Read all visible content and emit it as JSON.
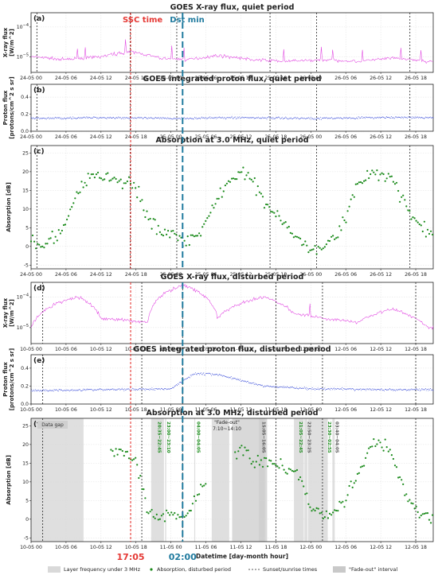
{
  "figure": {
    "ssc_label": "SSC time",
    "dst_label": "Dst min",
    "ssc_time": "17:05",
    "dst_time": "02:00",
    "xlabel": "Datetime [day-month hour]",
    "colors": {
      "xray": "#e040e0",
      "proton": "#2a3fd6",
      "absorption": "#1a8a1a",
      "ssc": "#e53935",
      "dst": "#1f7a9e",
      "shade": "#d9d9d9"
    },
    "ssc_hour": 17.083,
    "dst_hour": 26.0
  },
  "panels": [
    {
      "letter": "(a)",
      "title": "GOES X-ray flux, quiet period",
      "ylabel": "X-ray flux\n[W/m^2]",
      "yticks": [
        "10^-4",
        "10^-5"
      ]
    },
    {
      "letter": "(b)",
      "title": "GOES integrated proton flux, quiet period",
      "ylabel": "Proton flux\n[protons/cm^2 s sr]",
      "yticks": [
        "0.4",
        "0.2",
        "0.0"
      ]
    },
    {
      "letter": "(c)",
      "title": "Absorption at 3.0 MHz, quiet period",
      "ylabel": "Absorption [dB]",
      "yticks": [
        "25",
        "20",
        "15",
        "10",
        "5",
        "0",
        "-5"
      ]
    },
    {
      "letter": "(d)",
      "title": "GOES X-ray flux, disturbed period",
      "ylabel": "X-ray flux\n[W/m^2]",
      "yticks": [
        "10^-4",
        "10^-5"
      ]
    },
    {
      "letter": "(e)",
      "title": "GOES integrated proton flux, disturbed period",
      "ylabel": "Proton flux\n[protons/cm^2 s sr]",
      "yticks": [
        "0.4",
        "0.2",
        "0.0"
      ]
    },
    {
      "letter": "(f)",
      "title": "Absorption at 3.0 MHz, disturbed period",
      "ylabel": "Absorption [dB]",
      "yticks": [
        "25",
        "20",
        "15",
        "10",
        "5",
        "0",
        "-5"
      ]
    }
  ],
  "xticks_quiet": [
    "24-05 00",
    "24-05 06",
    "24-05 12",
    "24-05 18",
    "25-05 00",
    "25-05 06",
    "25-05 12",
    "25-05 18",
    "26-05 00",
    "26-05 06",
    "26-05 12",
    "26-05 18"
  ],
  "xticks_disturbed": [
    "10-05 00",
    "10-05 06",
    "10-05 12",
    "10-05 18",
    "11-05 00",
    "11-05 06",
    "11-05 12",
    "11-05 18",
    "12-05 00",
    "12-05 06",
    "12-05 12",
    "12-05 18"
  ],
  "annotations": {
    "data_gap": "Data gap",
    "fade_out": "\"Fade-out\"\n7:10~14:10",
    "intervals": [
      "20:35~22:45",
      "23:00~23:10",
      "04:00~04:05",
      "15:05~16:05",
      "21:05~22:45",
      "22:50~23:25",
      "23:30~02:55",
      "03:40~04:05"
    ]
  },
  "legend": {
    "shade": "Layer frequency under 3 MHz",
    "dots": "Absorption, disturbed period",
    "lines": "Sunset/sunrise times",
    "fade": "\"Fade-out\" interval"
  },
  "chart_data": [
    {
      "type": "line",
      "title": "GOES X-ray flux, quiet period",
      "ylabel": "X-ray flux [W/m^2]",
      "yscale": "log",
      "ylim": [
        3e-06,
        0.0003
      ],
      "x_unit": "hours from 24-05 00",
      "xlim": [
        0,
        69
      ],
      "series": [
        {
          "name": "",
          "x": [
            0,
            6,
            12,
            17,
            22,
            27,
            32,
            38,
            44,
            50,
            56,
            62,
            68
          ],
          "values": [
            1e-05,
            8e-06,
            1e-05,
            1.5e-05,
            9e-06,
            8e-06,
            1.1e-05,
            8e-06,
            7e-06,
            8e-06,
            7e-06,
            9e-06,
            7e-06
          ]
        }
      ]
    },
    {
      "type": "scatter",
      "title": "GOES integrated proton flux, quiet period",
      "ylabel": "Proton flux [protons/cm^2 s sr]",
      "ylim": [
        0,
        0.55
      ],
      "x_unit": "hours from 24-05 00",
      "series": [
        {
          "name": "",
          "x": [
            0,
            12,
            24,
            36,
            48,
            60,
            68
          ],
          "values": [
            0.15,
            0.16,
            0.15,
            0.16,
            0.15,
            0.16,
            0.16
          ]
        }
      ]
    },
    {
      "type": "scatter",
      "title": "Absorption at 3.0 MHz, quiet period",
      "ylabel": "Absorption [dB]",
      "ylim": [
        -6,
        27
      ],
      "x_unit": "hours from 24-05 00",
      "series": [
        {
          "name": "",
          "x": [
            0,
            2,
            4,
            6,
            8,
            10,
            12,
            14,
            16,
            18,
            20,
            22,
            24,
            26,
            28,
            30,
            32,
            34,
            36,
            38,
            40,
            42,
            44,
            46,
            48,
            50,
            52,
            54,
            56,
            58,
            60,
            62,
            64,
            66,
            68
          ],
          "values": [
            1,
            0,
            3,
            5,
            15,
            19,
            19,
            18,
            17,
            16,
            8,
            4,
            3,
            2,
            3,
            6,
            13,
            17,
            19,
            18,
            12,
            9,
            5,
            2,
            0,
            0,
            2,
            8,
            16,
            19,
            19,
            18,
            12,
            6,
            4
          ]
        }
      ]
    },
    {
      "type": "line",
      "title": "GOES X-ray flux, disturbed period",
      "ylabel": "X-ray flux [W/m^2]",
      "yscale": "log",
      "ylim": [
        3e-06,
        0.0003
      ],
      "x_unit": "hours from 10-05 00",
      "xlim": [
        0,
        69
      ],
      "series": [
        {
          "name": "",
          "x": [
            0,
            8,
            12,
            20,
            26,
            32,
            40,
            45,
            50,
            56,
            62,
            68
          ],
          "values": [
            1e-05,
            0.0001,
            2e-05,
            1.5e-05,
            0.00025,
            2e-05,
            0.0001,
            3e-05,
            2e-05,
            1.5e-05,
            4e-05,
            1e-05
          ]
        }
      ]
    },
    {
      "type": "scatter",
      "title": "GOES integrated proton flux, disturbed period",
      "ylabel": "Proton flux [protons/cm^2 s sr]",
      "ylim": [
        0,
        0.55
      ],
      "x_unit": "hours from 10-05 00",
      "series": [
        {
          "name": "",
          "x": [
            0,
            12,
            24,
            28,
            32,
            40,
            48,
            60,
            68
          ],
          "values": [
            0.15,
            0.16,
            0.17,
            0.34,
            0.33,
            0.2,
            0.17,
            0.16,
            0.16
          ]
        }
      ]
    },
    {
      "type": "scatter",
      "title": "Absorption at 3.0 MHz, disturbed period",
      "ylabel": "Absorption [dB]",
      "ylim": [
        -6,
        27
      ],
      "x_unit": "hours from 10-05 00",
      "series": [
        {
          "name": "Absorption, disturbed period",
          "x": [
            14,
            16,
            18,
            20,
            22,
            24,
            26,
            28,
            30,
            36,
            38,
            40,
            44,
            46,
            48,
            50,
            52,
            54,
            56,
            58,
            60,
            62,
            64,
            66,
            68
          ],
          "values": [
            19,
            18,
            15,
            3,
            0,
            2,
            1,
            5,
            10,
            19,
            16,
            15,
            14,
            12,
            3,
            1,
            2,
            6,
            12,
            19,
            21,
            17,
            8,
            2,
            0
          ]
        }
      ]
    }
  ]
}
